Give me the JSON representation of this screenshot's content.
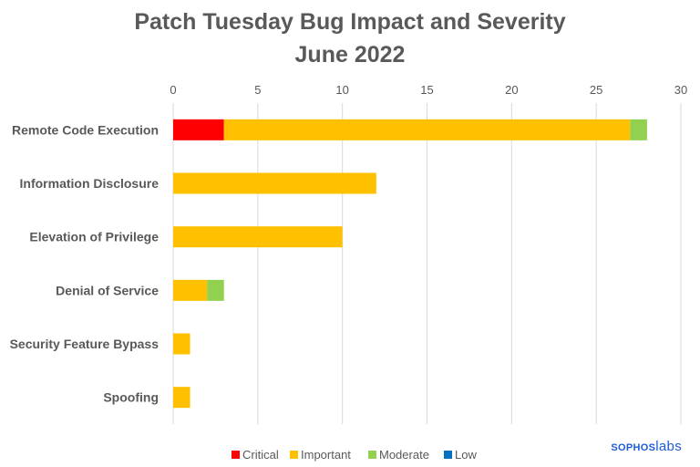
{
  "chart_data": {
    "type": "bar",
    "orientation": "horizontal",
    "stacked": true,
    "title": "Patch Tuesday Bug Impact and Severity",
    "subtitle": "June 2022",
    "categories": [
      "Remote Code Execution",
      "Information Disclosure",
      "Elevation of Privilege",
      "Denial of Service",
      "Security Feature Bypass",
      "Spoofing"
    ],
    "series": [
      {
        "name": "Critical",
        "color": "#ff0000",
        "values": [
          3,
          0,
          0,
          0,
          0,
          0
        ]
      },
      {
        "name": "Important",
        "color": "#ffc000",
        "values": [
          24,
          12,
          10,
          2,
          1,
          1
        ]
      },
      {
        "name": "Moderate",
        "color": "#92d050",
        "values": [
          1,
          0,
          0,
          1,
          0,
          0
        ]
      },
      {
        "name": "Low",
        "color": "#0070c0",
        "values": [
          0,
          0,
          0,
          0,
          0,
          0
        ]
      }
    ],
    "xlim": [
      0,
      30
    ],
    "xticks": [
      "0",
      "5",
      "10",
      "15",
      "20",
      "25",
      "30"
    ],
    "grid": true,
    "legend": "bottom"
  },
  "branding": {
    "sophos": "SOPHOS",
    "labs": "labs"
  }
}
